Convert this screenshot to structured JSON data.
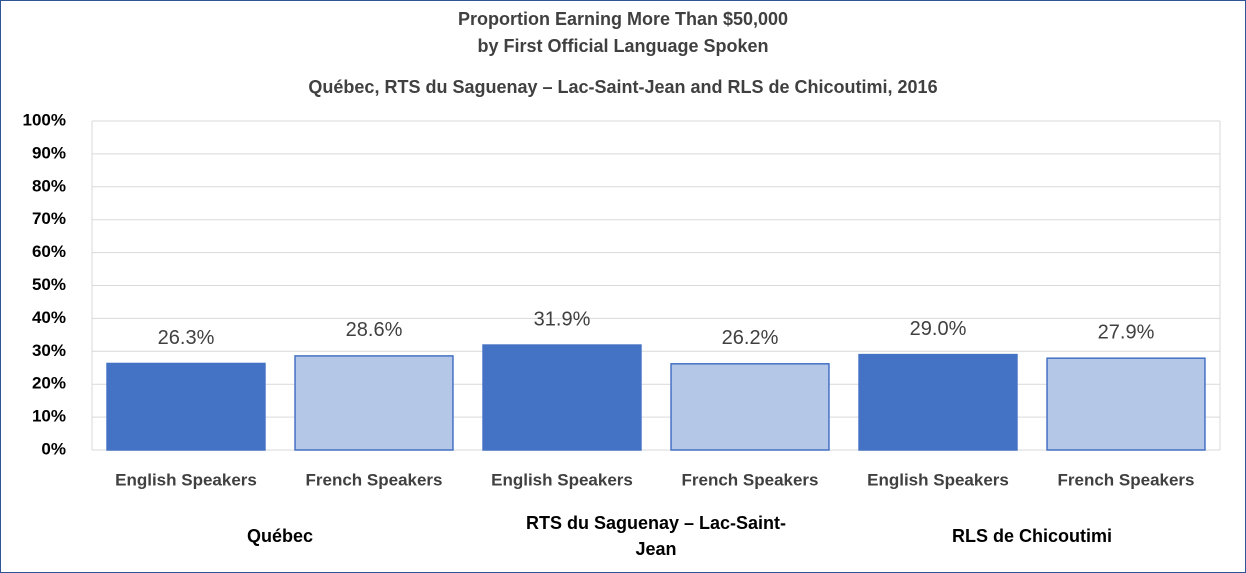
{
  "chart_data": {
    "type": "bar",
    "title_lines": [
      "Proportion Earning More Than $50,000",
      "by First Official Language Spoken",
      "Québec, RTS du Saguenay – Lac-Saint-Jean  and RLS de Chicoutimi, 2016"
    ],
    "colors": [
      "#4472c4",
      "#b4c7e7"
    ],
    "groups": [
      {
        "name": "Québec",
        "categories": [
          "English Speakers",
          "French Speakers"
        ],
        "values": [
          26.3,
          28.6
        ],
        "value_labels": [
          "26.3%",
          "28.6%"
        ]
      },
      {
        "name": "RTS du Saguenay – Lac-Saint-Jean",
        "categories": [
          "English Speakers",
          "French Speakers"
        ],
        "values": [
          31.9,
          26.2
        ],
        "value_labels": [
          "31.9%",
          "26.2%"
        ]
      },
      {
        "name": "RLS de Chicoutimi",
        "categories": [
          "English Speakers",
          "French Speakers"
        ],
        "values": [
          29.0,
          27.9
        ],
        "value_labels": [
          "29.0%",
          "27.9%"
        ]
      }
    ],
    "ylim": [
      0,
      100
    ],
    "yticks": [
      {
        "value": 0,
        "label": "0%"
      },
      {
        "value": 10,
        "label": "10%"
      },
      {
        "value": 20,
        "label": "20%"
      },
      {
        "value": 30,
        "label": "30%"
      },
      {
        "value": 40,
        "label": "40%"
      },
      {
        "value": 50,
        "label": "50%"
      },
      {
        "value": 60,
        "label": "60%"
      },
      {
        "value": 70,
        "label": "70%"
      },
      {
        "value": 80,
        "label": "80%"
      },
      {
        "value": 90,
        "label": "90%"
      },
      {
        "value": 100,
        "label": "100%"
      }
    ],
    "grid": true
  }
}
